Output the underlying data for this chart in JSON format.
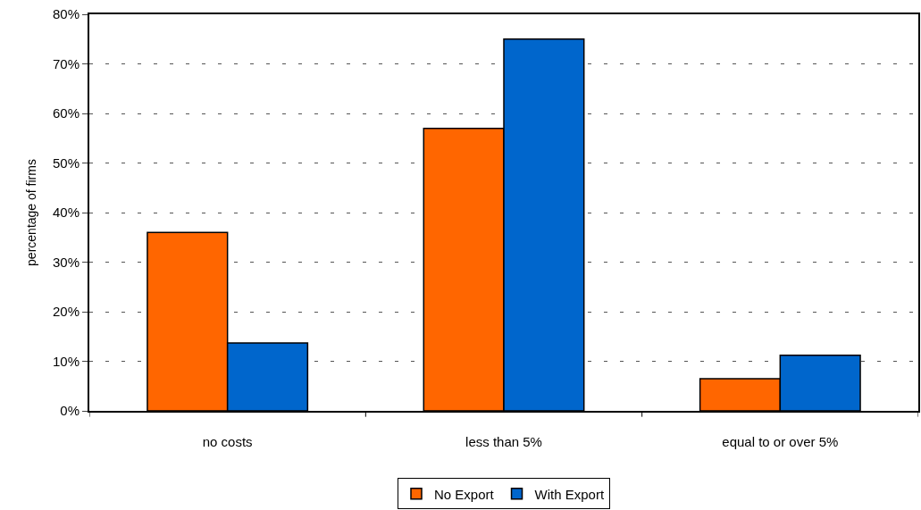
{
  "chart_data": {
    "type": "bar",
    "ylabel": "percentage of firms",
    "categories": [
      "no costs",
      "less than 5%",
      "equal to or over 5%"
    ],
    "series": [
      {
        "name": "No Export",
        "color": "#ff6600",
        "values": [
          36,
          57,
          6.5
        ]
      },
      {
        "name": "With Export",
        "color": "#0066cc",
        "values": [
          13.7,
          75,
          11.2
        ]
      }
    ],
    "ylim": [
      0,
      80
    ],
    "yticks": [
      {
        "value": 0,
        "label": "0%"
      },
      {
        "value": 10,
        "label": "10%"
      },
      {
        "value": 20,
        "label": "20%"
      },
      {
        "value": 30,
        "label": "30%"
      },
      {
        "value": 40,
        "label": "40%"
      },
      {
        "value": 50,
        "label": "50%"
      },
      {
        "value": 60,
        "label": "60%"
      },
      {
        "value": 70,
        "label": "70%"
      },
      {
        "value": 80,
        "label": "80%"
      }
    ],
    "grid": "y",
    "legend": "bottom"
  }
}
